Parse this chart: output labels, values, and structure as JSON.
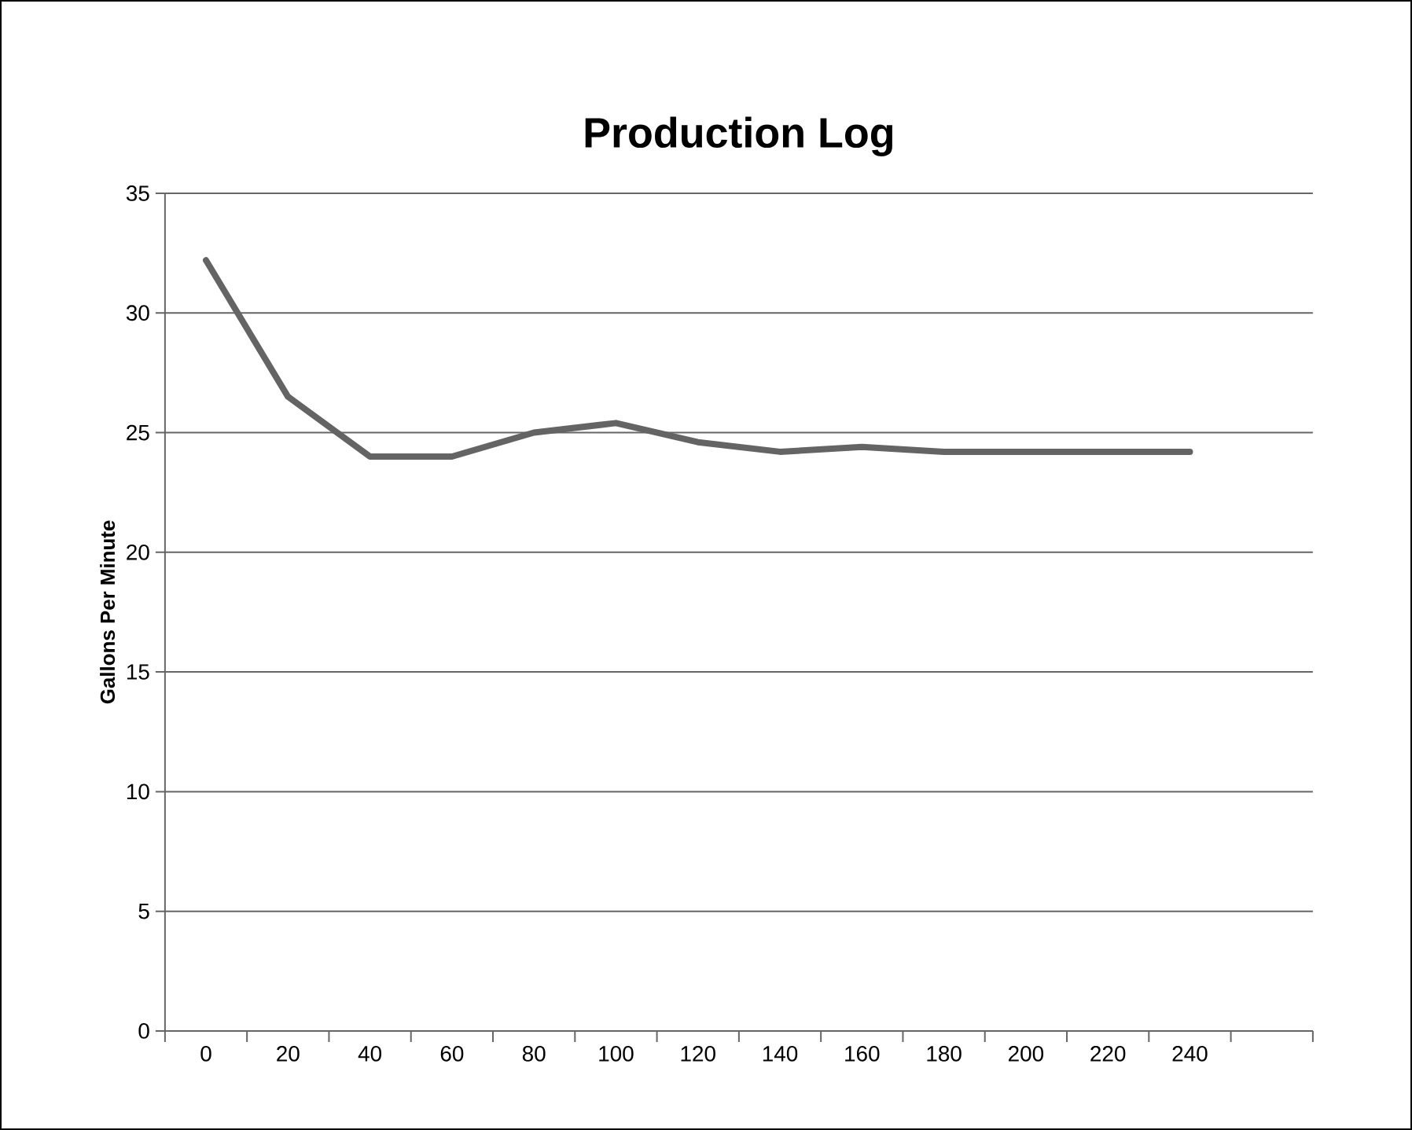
{
  "chart_data": {
    "type": "line",
    "title": "Production Log",
    "ylabel": "Gallons Per Minute",
    "categories": [
      "0",
      "20",
      "40",
      "60",
      "80",
      "100",
      "120",
      "140",
      "160",
      "180",
      "200",
      "220",
      "240",
      null
    ],
    "series": [
      {
        "color": "#646464",
        "values": [
          32.2,
          26.5,
          24,
          24,
          25,
          25.4,
          24.6,
          24.2,
          24.4,
          24.2,
          24.2,
          24.2,
          24.2,
          null
        ]
      }
    ],
    "ylim": [
      0,
      35
    ],
    "yticks": [
      0,
      5,
      10,
      15,
      20,
      25,
      30,
      35
    ],
    "grid": "y",
    "marker": "none",
    "line_style": "solid"
  }
}
